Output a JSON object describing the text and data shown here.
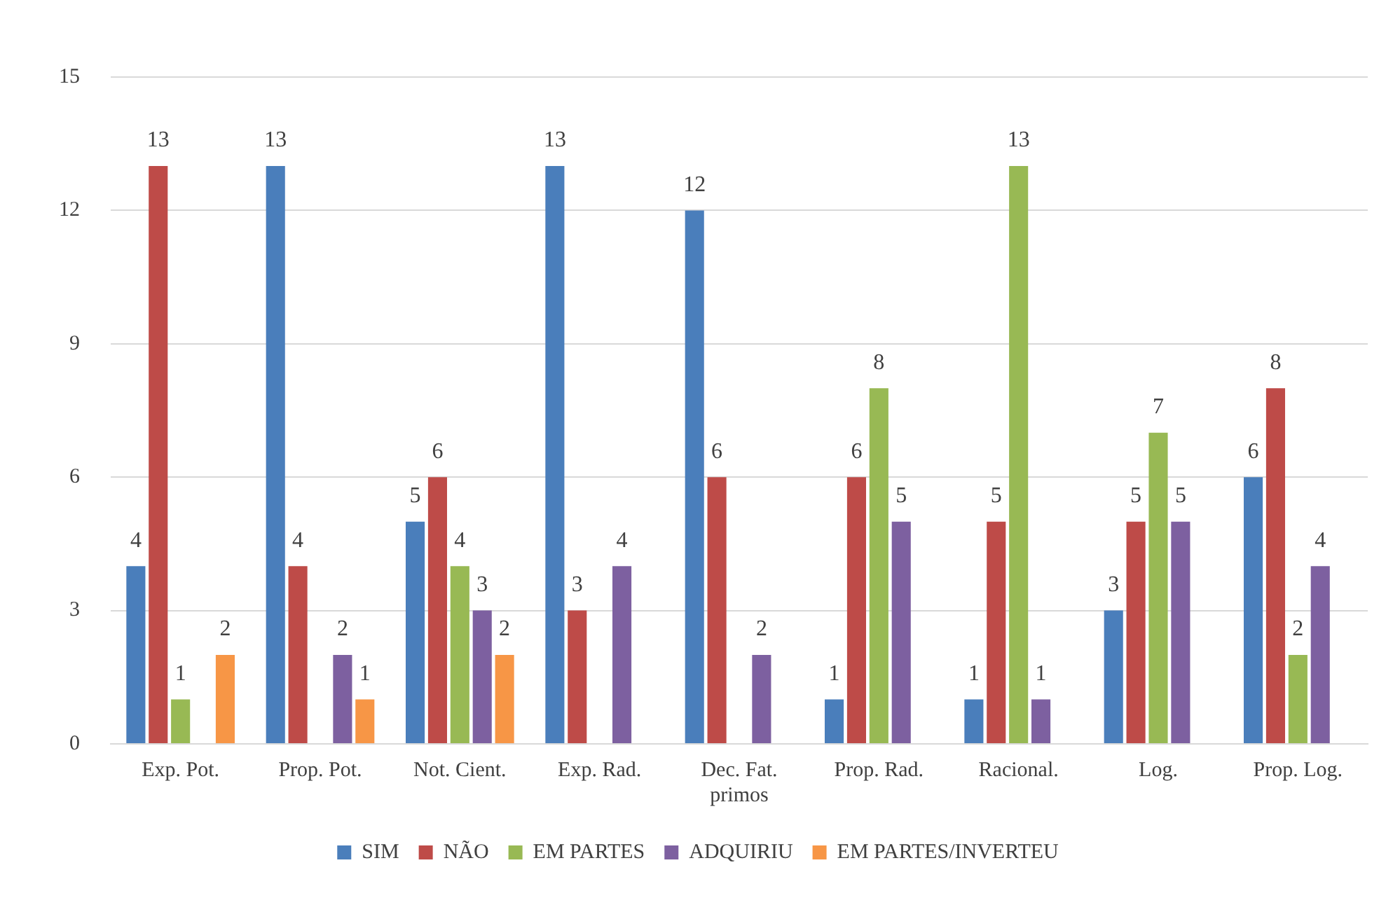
{
  "chart_data": {
    "type": "bar",
    "categories": [
      "Exp. Pot.",
      "Prop. Pot.",
      "Not. Cient.",
      "Exp. Rad.",
      "Dec. Fat. primos",
      "Prop. Rad.",
      "Racional.",
      "Log.",
      "Prop. Log."
    ],
    "series": [
      {
        "name": "SIM",
        "color": "#4a7ebb",
        "values": [
          4,
          13,
          5,
          13,
          12,
          1,
          1,
          3,
          6
        ]
      },
      {
        "name": "NÃO",
        "color": "#be4b48",
        "values": [
          13,
          4,
          6,
          3,
          6,
          6,
          5,
          5,
          8
        ]
      },
      {
        "name": "EM PARTES",
        "color": "#98b954",
        "values": [
          1,
          null,
          4,
          null,
          null,
          8,
          13,
          7,
          2
        ]
      },
      {
        "name": "ADQUIRIU",
        "color": "#7d60a0",
        "values": [
          null,
          2,
          3,
          4,
          2,
          5,
          1,
          5,
          4
        ]
      },
      {
        "name": "EM PARTES/INVERTEU",
        "color": "#f79646",
        "values": [
          2,
          1,
          2,
          null,
          null,
          null,
          null,
          null,
          null
        ]
      }
    ],
    "ylim": [
      0,
      15
    ],
    "yticks": [
      0,
      3,
      6,
      9,
      12,
      15
    ],
    "grid": "y",
    "legend": "bottom",
    "data_labels": true
  }
}
